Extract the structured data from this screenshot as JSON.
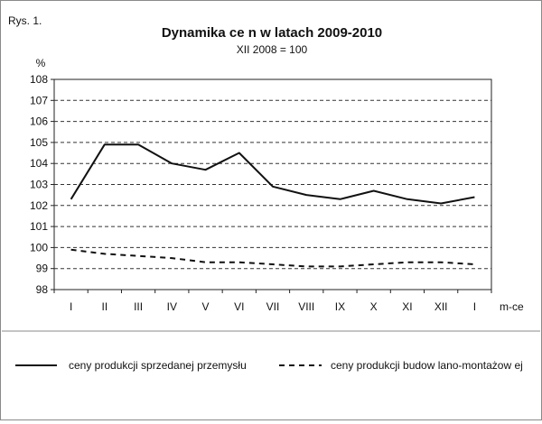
{
  "figure_label": "Rys. 1.",
  "chart_data": {
    "type": "line",
    "title": "Dynamika ce n w latach 2009-2010",
    "subtitle": "XII 2008 = 100",
    "ylabel": "%",
    "xlabel": "m-ce",
    "ylim": [
      98,
      108
    ],
    "yticks": [
      98,
      99,
      100,
      101,
      102,
      103,
      104,
      105,
      106,
      107,
      108
    ],
    "categories": [
      "I",
      "II",
      "III",
      "IV",
      "V",
      "VI",
      "VII",
      "VIII",
      "IX",
      "X",
      "XI",
      "XII",
      "I"
    ],
    "series": [
      {
        "name": "ceny produkcji sprzedanej przemysłu",
        "style": "solid",
        "color": "#111111",
        "values": [
          102.3,
          104.9,
          104.9,
          104.0,
          103.7,
          104.5,
          102.9,
          102.5,
          102.3,
          102.7,
          102.3,
          102.1,
          102.4
        ]
      },
      {
        "name": "ceny produkcji budow lano-montażow ej",
        "style": "dashed",
        "color": "#111111",
        "values": [
          99.9,
          99.7,
          99.6,
          99.5,
          99.3,
          99.3,
          99.2,
          99.1,
          99.1,
          99.2,
          99.3,
          99.3,
          99.2
        ]
      }
    ],
    "grid": true,
    "legend_position": "bottom"
  }
}
